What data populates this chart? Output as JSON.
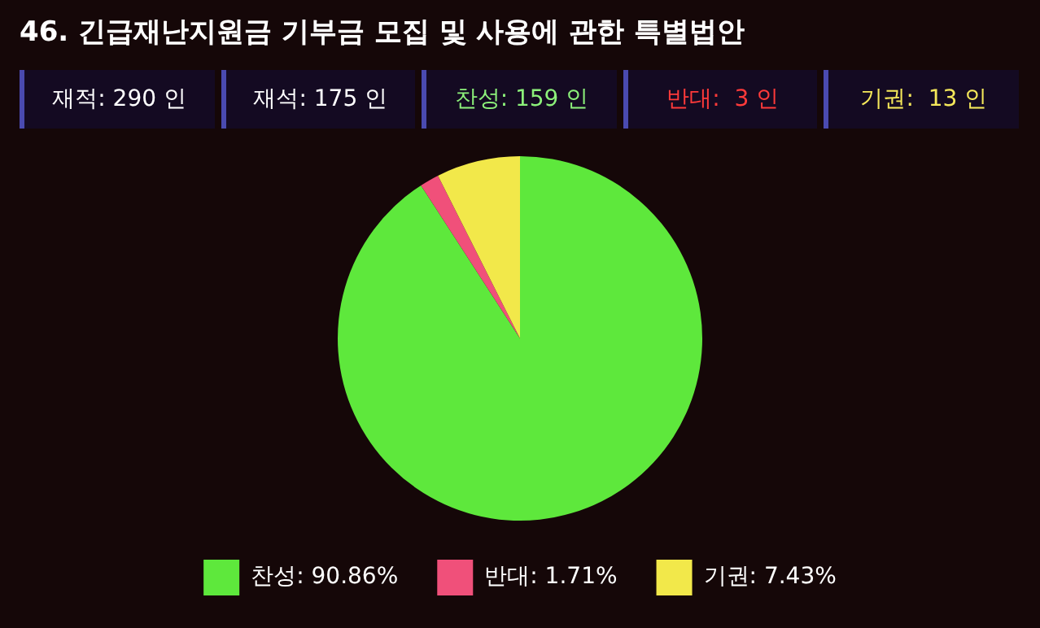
{
  "chart_data": {
    "type": "pie",
    "title": "46. 긴급재난지원금 기부금 모집 및 사용에 관한 특별법안",
    "annotations": [
      "재적: 290 인",
      "재석: 175 인",
      "찬성: 159 인",
      "반대:  3 인",
      "기권:  13 인"
    ],
    "categories": [
      "찬성: 90.86%",
      "반대: 1.71%",
      "기권: 7.43%"
    ],
    "values": [
      90.86,
      1.71,
      7.43
    ],
    "colors": [
      "#5ee83c",
      "#f0507a",
      "#f2e84a"
    ],
    "legend": "bottom"
  }
}
